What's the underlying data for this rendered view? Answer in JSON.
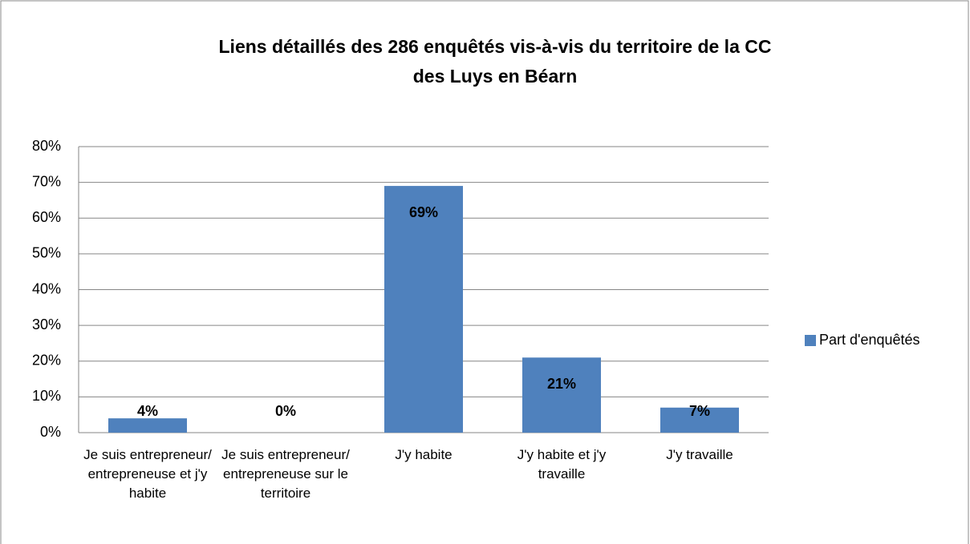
{
  "chart_data": {
    "type": "bar",
    "title": "Liens détaillés des 286 enquêtés vis-à-vis du territoire de la CC des Luys en Béarn",
    "categories": [
      "Je suis entrepreneur/ entrepreneuse et j'y habite",
      "Je suis entrepreneur/ entrepreneuse sur le territoire",
      "J'y habite",
      "J'y habite et j'y travaille",
      "J'y travaille"
    ],
    "series": [
      {
        "name": "Part d'enquêtés",
        "color": "#4f81bd",
        "values": [
          4,
          0,
          69,
          21,
          7
        ],
        "value_labels": [
          "4%",
          "0%",
          "69%",
          "21%",
          "7%"
        ]
      }
    ],
    "ylim": [
      0,
      80
    ],
    "yticks": [
      {
        "value": 0,
        "label": "0%"
      },
      {
        "value": 10,
        "label": "10%"
      },
      {
        "value": 20,
        "label": "20%"
      },
      {
        "value": 30,
        "label": "30%"
      },
      {
        "value": 40,
        "label": "40%"
      },
      {
        "value": 50,
        "label": "50%"
      },
      {
        "value": 60,
        "label": "60%"
      },
      {
        "value": 70,
        "label": "70%"
      },
      {
        "value": 80,
        "label": "80%"
      }
    ],
    "grid": true,
    "legend": "right"
  }
}
